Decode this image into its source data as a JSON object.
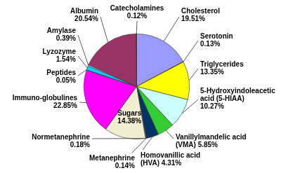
{
  "chart_data": {
    "type": "pie",
    "categories": [
      "Cholesterol",
      "Serotonin",
      "Triglycerides",
      "5-Hydroxyindoleacetic acid (5-HIAA)",
      "Vanillylmandelic acid (VMA)",
      "Homovanillic acid (HVA)",
      "Metanephrine",
      "Normetanephrine",
      "Sugars",
      "Immuno-globulines",
      "Peptides",
      "Lyzozyme",
      "Amylase",
      "Albumin",
      "Catecholamines"
    ],
    "values": [
      19.51,
      0.13,
      13.35,
      10.27,
      5.85,
      4.31,
      0.14,
      0.18,
      14.38,
      22.85,
      0.05,
      1.54,
      0.39,
      20.54,
      0.12
    ],
    "value_labels": [
      "19.51%",
      "0.13%",
      "13.35%",
      "10.27%",
      "5.85%",
      "4.31%",
      "0.14%",
      "0.18%",
      "14.38%",
      "22.85%",
      "0.05%",
      "1.54%",
      "0.39%",
      "20.54%",
      "0.12%"
    ],
    "colors": [
      "#9999ff",
      "#800080",
      "#ffff00",
      "#ccffff",
      "#33cc33",
      "#003366",
      "#ff8080",
      "#ff9999",
      "#f2eed2",
      "#ff00ff",
      "#660066",
      "#00ccff",
      "#ccccff",
      "#993366",
      "#800000"
    ],
    "data_labels": true
  }
}
